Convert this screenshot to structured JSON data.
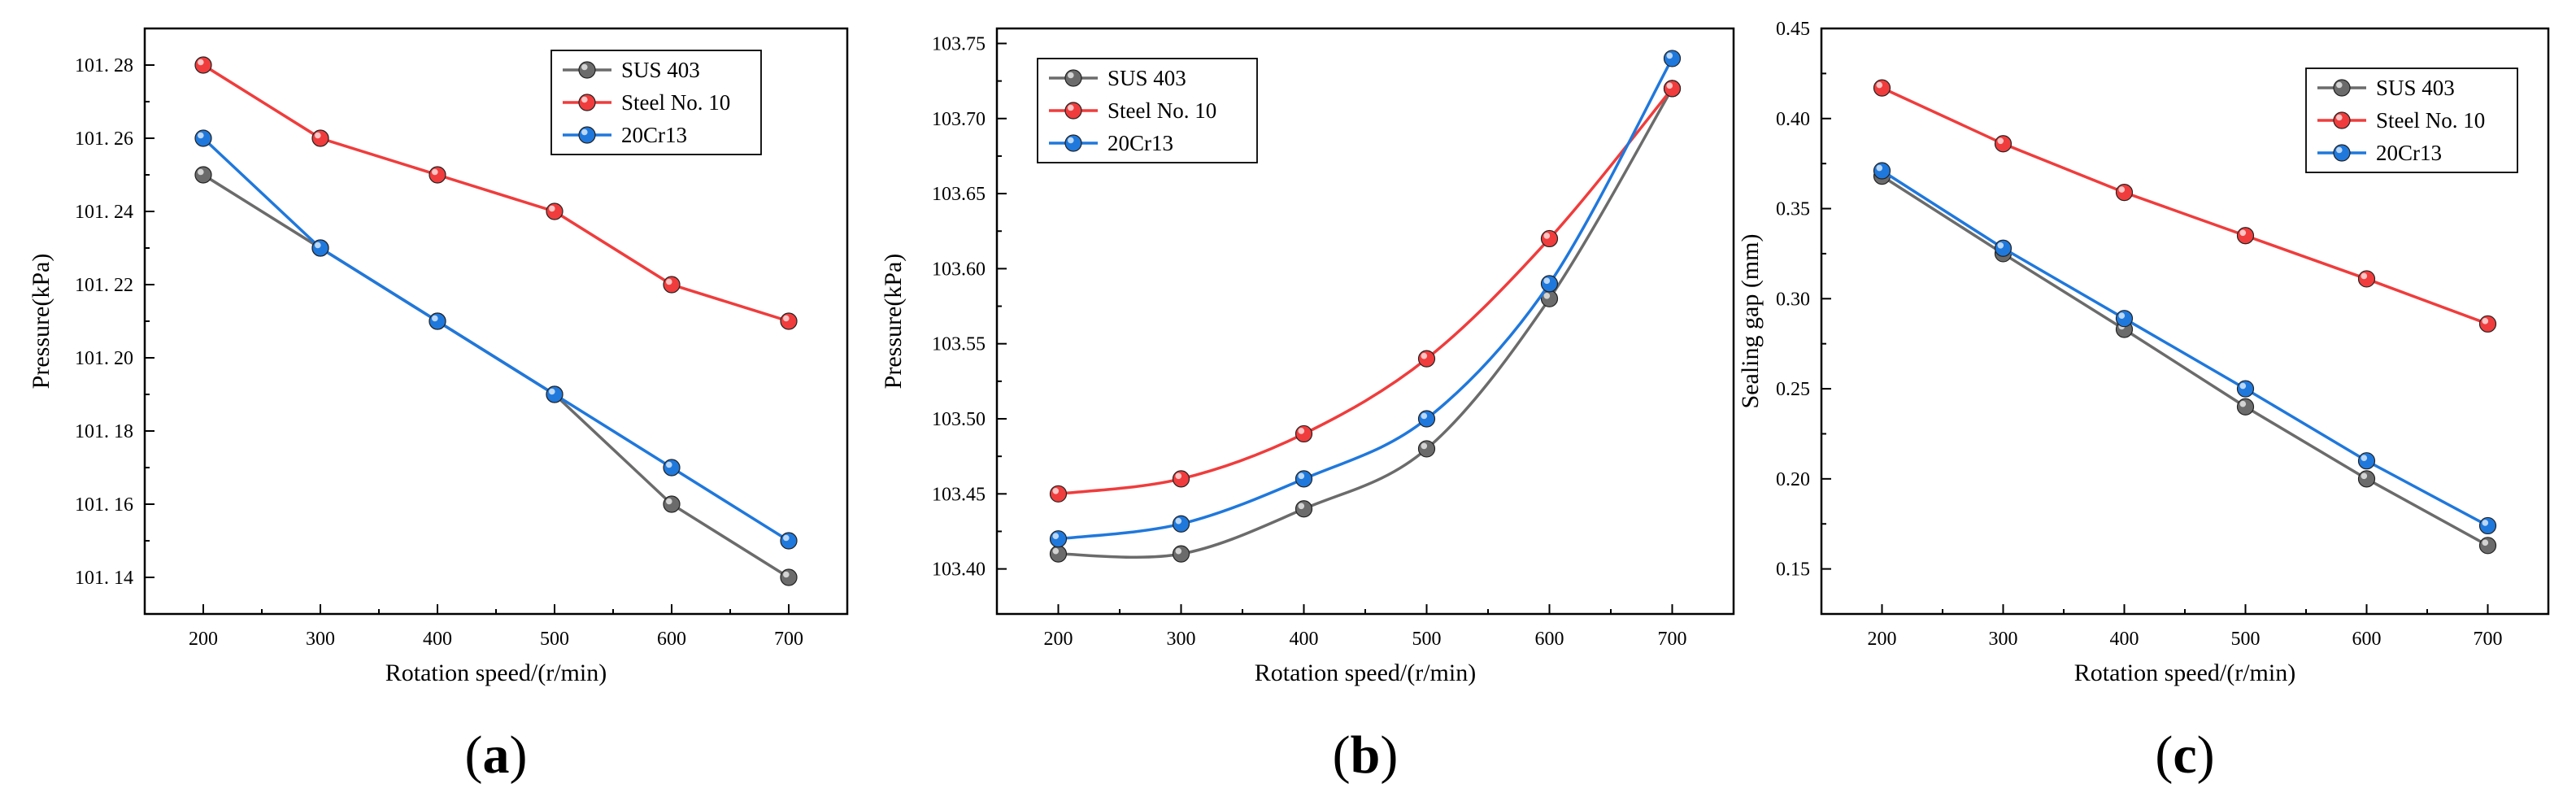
{
  "figure": {
    "panels": [
      "(a)",
      "(b)",
      "(c)"
    ]
  },
  "chart_data": [
    {
      "type": "line",
      "panel_label": "(a)",
      "xlabel": "Rotation speed/(r/min)",
      "ylabel": "Pressure(kPa)",
      "x": [
        200,
        300,
        400,
        500,
        600,
        700
      ],
      "xlim": [
        150,
        750
      ],
      "xticks": [
        200,
        300,
        400,
        500,
        600,
        700
      ],
      "ylim": [
        101.13,
        101.29
      ],
      "yticks": [
        "101.14",
        "101.16",
        "101.18",
        "101.20",
        "101.22",
        "101.24",
        "101.26",
        "101.28"
      ],
      "yticklabels": [
        "101. 14",
        "101. 16",
        "101. 18",
        "101. 20",
        "101. 22",
        "101. 24",
        "101. 26",
        "101. 28"
      ],
      "curve": "linear",
      "legend_position": "top-right",
      "series": [
        {
          "name": "SUS 403",
          "color": "#6b6b6b",
          "values": [
            101.25,
            101.23,
            101.21,
            101.19,
            101.16,
            101.14
          ]
        },
        {
          "name": "Steel No. 10",
          "color": "#f03c3c",
          "values": [
            101.28,
            101.26,
            101.25,
            101.24,
            101.22,
            101.21
          ]
        },
        {
          "name": "20Cr13",
          "color": "#1f78dc",
          "values": [
            101.26,
            101.23,
            101.21,
            101.19,
            101.17,
            101.15
          ]
        }
      ]
    },
    {
      "type": "line",
      "panel_label": "(b)",
      "xlabel": "Rotation speed/(r/min)",
      "ylabel": "Pressure(kPa)",
      "x": [
        200,
        300,
        400,
        500,
        600,
        700
      ],
      "xlim": [
        150,
        750
      ],
      "xticks": [
        200,
        300,
        400,
        500,
        600,
        700
      ],
      "ylim": [
        103.37,
        103.76
      ],
      "yticks": [
        "103.40",
        "103.45",
        "103.50",
        "103.55",
        "103.60",
        "103.65",
        "103.70",
        "103.75"
      ],
      "yticklabels": [
        "103.40",
        "103.45",
        "103.50",
        "103.55",
        "103.60",
        "103.65",
        "103.70",
        "103.75"
      ],
      "curve": "smooth",
      "legend_position": "top-left",
      "series": [
        {
          "name": "SUS 403",
          "color": "#6b6b6b",
          "values": [
            103.41,
            103.41,
            103.44,
            103.48,
            103.58,
            103.72
          ]
        },
        {
          "name": "Steel No. 10",
          "color": "#f03c3c",
          "values": [
            103.45,
            103.46,
            103.49,
            103.54,
            103.62,
            103.72
          ]
        },
        {
          "name": "20Cr13",
          "color": "#1f78dc",
          "values": [
            103.42,
            103.43,
            103.46,
            103.5,
            103.59,
            103.74
          ]
        }
      ]
    },
    {
      "type": "line",
      "panel_label": "(c)",
      "xlabel": "Rotation speed/(r/min)",
      "ylabel": "Sealing gap (mm)",
      "x": [
        200,
        300,
        400,
        500,
        600,
        700
      ],
      "xlim": [
        150,
        750
      ],
      "xticks": [
        200,
        300,
        400,
        500,
        600,
        700
      ],
      "ylim": [
        0.125,
        0.45
      ],
      "yticks": [
        "0.15",
        "0.20",
        "0.25",
        "0.30",
        "0.35",
        "0.40",
        "0.45"
      ],
      "yticklabels": [
        "0.15",
        "0.20",
        "0.25",
        "0.30",
        "0.35",
        "0.40",
        "0.45"
      ],
      "curve": "linear",
      "legend_position": "top-right",
      "series": [
        {
          "name": "SUS 403",
          "color": "#6b6b6b",
          "values": [
            0.368,
            0.325,
            0.283,
            0.24,
            0.2,
            0.163
          ]
        },
        {
          "name": "Steel No. 10",
          "color": "#f03c3c",
          "values": [
            0.417,
            0.386,
            0.359,
            0.335,
            0.311,
            0.286
          ]
        },
        {
          "name": "20Cr13",
          "color": "#1f78dc",
          "values": [
            0.371,
            0.328,
            0.289,
            0.25,
            0.21,
            0.174
          ]
        }
      ]
    }
  ]
}
